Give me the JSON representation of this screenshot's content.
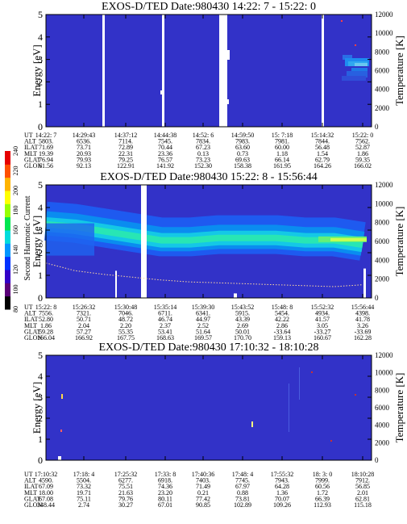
{
  "chart_data": [
    {
      "type": "heatmap",
      "title": "EXOS-D/TED   Date:980430  14:22: 7 - 15:22: 0",
      "ylabel": "Energy [eV]",
      "y2label": "Temperature [K]",
      "ylim": [
        0,
        5
      ],
      "y2lim": [
        0,
        12000
      ],
      "yticks": [
        "0",
        "1",
        "2",
        "3",
        "4",
        "5"
      ],
      "y2ticks": [
        "0",
        "2000",
        "4000",
        "6000",
        "8000",
        "10000",
        "12000"
      ],
      "orbit_table": {
        "row_labels": [
          "UT",
          "ALT",
          "ILAT",
          "MLT",
          "GLAT",
          "GLON"
        ],
        "columns": [
          [
            "14:22: 7",
            "5803.",
            "71.69",
            "19.39",
            "76.94",
            "61.56"
          ],
          [
            "14:29:43",
            "6536.",
            "73.71",
            "20.93",
            "79.93",
            "92.13"
          ],
          [
            "14:37:12",
            "7114.",
            "72.89",
            "22.31",
            "79.25",
            "122.91"
          ],
          [
            "14:44:38",
            "7545.",
            "70.44",
            "23.36",
            "76.57",
            "141.92"
          ],
          [
            "14:52: 6",
            "7834.",
            "67.23",
            "0.13",
            "73.23",
            "152.30"
          ],
          [
            "14:59:50",
            "7983.",
            "63.60",
            "0.73",
            "69.63",
            "158.38"
          ],
          [
            "15: 7:18",
            "7981.",
            "60.00",
            "1.18",
            "66.14",
            "161.95"
          ],
          [
            "15:14:32",
            "7844.",
            "56.48",
            "1.54",
            "62.79",
            "164.26"
          ],
          [
            "15:22: 0",
            "7562.",
            "52.87",
            "1.86",
            "59.35",
            "166.02"
          ]
        ]
      }
    },
    {
      "type": "heatmap",
      "title": "EXOS-D/TED   Date:980430  15:22: 8 - 15:56:44",
      "ylabel": "Energy [eV]",
      "y2label": "Temperature [K]",
      "ylim": [
        0,
        5
      ],
      "y2lim": [
        0,
        12000
      ],
      "yticks": [
        "0",
        "1",
        "2",
        "3",
        "4",
        "5"
      ],
      "y2ticks": [
        "0",
        "2000",
        "4000",
        "6000",
        "8000",
        "10000",
        "12000"
      ],
      "band_peak_ev": [
        3.2,
        3.1,
        2.9,
        2.7,
        2.5,
        2.5,
        2.6,
        2.6,
        2.6,
        2.5,
        2.5,
        2.3
      ],
      "temperature_k": [
        3700,
        2900,
        2500,
        2200,
        1900,
        1700,
        1600,
        1500,
        1400,
        1300,
        1200,
        1400
      ],
      "colorbar": {
        "label": "Second Harmonic Current",
        "ticks": [
          "80",
          "100",
          "120",
          "140",
          "160",
          "180",
          "200",
          "220",
          "240"
        ],
        "colors": [
          "#000000",
          "#5a0078",
          "#3200c8",
          "#0032ff",
          "#0096ff",
          "#00dcdc",
          "#00e650",
          "#96ff00",
          "#ffff00",
          "#ffb400",
          "#ff5000",
          "#e60000"
        ]
      },
      "orbit_table": {
        "row_labels": [
          "UT",
          "ALT",
          "ILAT",
          "MLT",
          "GLAT",
          "GLON"
        ],
        "columns": [
          [
            "15:22: 8",
            "7556.",
            "52.80",
            "1.86",
            "59.28",
            "166.04"
          ],
          [
            "15:26:32",
            "7321.",
            "50.71",
            "2.04",
            "57.27",
            "166.92"
          ],
          [
            "15:30:48",
            "7046.",
            "48.72",
            "2.20",
            "55.35",
            "167.75"
          ],
          [
            "15:35:14",
            "6711.",
            "46.74",
            "2.37",
            "53.41",
            "168.63"
          ],
          [
            "15:39:30",
            "6341.",
            "44.97",
            "2.52",
            "51.64",
            "169.57"
          ],
          [
            "15:43:52",
            "5915.",
            "43.39",
            "2.69",
            "50.01",
            "170.70"
          ],
          [
            "15:48: 8",
            "5454.",
            "42.22",
            "2.86",
            "-33.64",
            "159.13"
          ],
          [
            "15:52:32",
            "4934.",
            "41.57",
            "3.05",
            "-33.27",
            "160.67"
          ],
          [
            "15:56:44",
            "4398.",
            "41.78",
            "3.26",
            "-33.69",
            "162.28"
          ]
        ]
      }
    },
    {
      "type": "heatmap",
      "title": "EXOS-D/TED   Date:980430  17:10:32 - 18:10:28",
      "ylabel": "Energy [eV]",
      "y2label": "Temperature [K]",
      "ylim": [
        0,
        5
      ],
      "y2lim": [
        0,
        12000
      ],
      "yticks": [
        "0",
        "1",
        "2",
        "3",
        "4",
        "5"
      ],
      "y2ticks": [
        "0",
        "2000",
        "4000",
        "6000",
        "8000",
        "10000",
        "12000"
      ],
      "orbit_table": {
        "row_labels": [
          "UT",
          "ALT",
          "ILAT",
          "MLT",
          "GLAT",
          "GLON"
        ],
        "columns": [
          [
            "17:10:32",
            "4590.",
            "67.09",
            "18.00",
            "67.08",
            "348.44"
          ],
          [
            "17:18: 4",
            "5504.",
            "73.32",
            "19.71",
            "75.11",
            "2.74"
          ],
          [
            "17:25:32",
            "6277.",
            "75.51",
            "21.63",
            "79.76",
            "30.27"
          ],
          [
            "17:33: 8",
            "6918.",
            "74.36",
            "23.20",
            "80.11",
            "67.01"
          ],
          [
            "17:40:36",
            "7403.",
            "71.49",
            "0.21",
            "77.42",
            "90.85"
          ],
          [
            "17:48: 4",
            "7745.",
            "67.97",
            "0.88",
            "73.81",
            "102.89"
          ],
          [
            "17:55:32",
            "7943.",
            "64.28",
            "1.36",
            "70.07",
            "109.26"
          ],
          [
            "18: 3: 0",
            "7999.",
            "60.56",
            "1.72",
            "66.39",
            "112.93"
          ],
          [
            "18:10:28",
            "7912.",
            "56.85",
            "2.01",
            "62.81",
            "115.18"
          ]
        ]
      }
    }
  ]
}
